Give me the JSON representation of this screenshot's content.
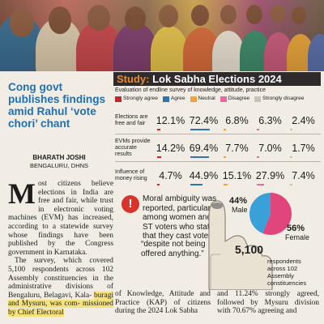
{
  "colors": {
    "strongly_agree": "#c0282c",
    "agree": "#2f73b6",
    "neutral": "#f2a23a",
    "disagree": "#e86aa0",
    "strongly_disagree": "#c9c2b4",
    "headline": "#1f6fb4",
    "highlight": "#f6e27a",
    "pie_male": "#3aa0d8",
    "pie_female": "#e0457b"
  },
  "article": {
    "headline": "Cong govt publishes findings amid Rahul ‘vote chori’ chant",
    "byline_name": "BHARATH JOSHI",
    "byline_place": "BENGALURU, DHNS",
    "dropcap": "M",
    "para1": "ost citizens believe elections in India are free and fair, while trust in electronic voting machines (EVM) has increased, according to a statewide survey whose findings have been published by the Congress government in Karnataka.",
    "para2_start": "The survey, which covered 5,100 respondents across 102 Assembly constituencies in the administrative divisions of Bengaluru, Belagavi, Kala-",
    "para2_hl": "buragi and Mysuru, was com- missioned by Chief Electoral",
    "col2_text": "of Knowledge, Attitude and Practice (KAP) of citizens during the 2024 Lok Sabha",
    "col3_text": "and 11.24% strongly agreed, followed by Mysuru division with 70.67% agreeing and"
  },
  "study": {
    "title_prefix": "Study: ",
    "title_main": "Lok Sabha Elections 2024",
    "subtitle": "Evaluation of endline survey of knowledge, attitude, practice",
    "legend": [
      "Strongly agree",
      "Agree",
      "Neutral",
      "Disagree",
      "Strongly disagree"
    ]
  },
  "chart_data": [
    {
      "type": "table",
      "columns": [
        "Strongly agree",
        "Agree",
        "Neutral",
        "Disagree",
        "Strongly disagree"
      ],
      "rows": [
        {
          "label": "Elections are free and fair",
          "values": [
            "12.1%",
            "72.4%",
            "6.8%",
            "6.3%",
            "2.4%"
          ]
        },
        {
          "label": "EVMs provide accurate results",
          "values": [
            "14.2%",
            "69.4%",
            "7.7%",
            "7.0%",
            "1.7%"
          ]
        },
        {
          "label": "Influence of money rising",
          "values": [
            "4.7%",
            "44.9%",
            "15.1%",
            "27.9%",
            "7.4%"
          ]
        }
      ]
    },
    {
      "type": "pie",
      "slices": [
        {
          "label": "Male",
          "value": 44,
          "display": "44%"
        },
        {
          "label": "Female",
          "value": 56,
          "display": "56%"
        }
      ]
    }
  ],
  "info": {
    "alert_symbol": "!",
    "moral_text": "Moral ambiguity was reported, particularly among women and ST voters who stated that they cast votes",
    "quote_text": "“despite not being offered anything.”",
    "respondents_number": "5,100",
    "respondents_text": "respondents across 102 Assembly constituencies"
  }
}
